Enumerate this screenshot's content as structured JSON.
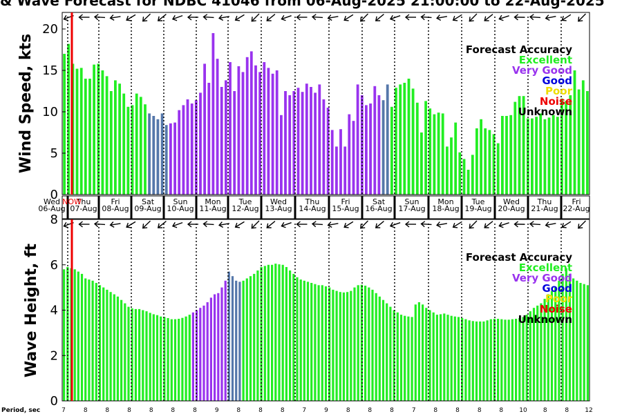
{
  "title": "& Wave Forecast for NDBC 41046 from 06-Aug-2025 21:00:00 to 22-Aug-2025",
  "legend": {
    "title": "Forecast Accuracy",
    "items": [
      {
        "label": "Excellent",
        "color": "#22ee22"
      },
      {
        "label": "Very Good",
        "color": "#9933ee"
      },
      {
        "label": "Good",
        "color": "#0000dd"
      },
      {
        "label": "Poor",
        "color": "#eedd00"
      },
      {
        "label": "Noise",
        "color": "#ee0000"
      },
      {
        "label": "Unknown",
        "color": "#000000"
      }
    ]
  },
  "day_labels": [
    {
      "day": "Wed",
      "date": "06-Aug"
    },
    {
      "day": "Thu",
      "date": "07-Aug"
    },
    {
      "day": "Fri",
      "date": "08-Aug"
    },
    {
      "day": "Sat",
      "date": "09-Aug"
    },
    {
      "day": "Sun",
      "date": "10-Aug"
    },
    {
      "day": "Mon",
      "date": "11-Aug"
    },
    {
      "day": "Tue",
      "date": "12-Aug"
    },
    {
      "day": "Wed",
      "date": "13-Aug"
    },
    {
      "day": "Thu",
      "date": "14-Aug"
    },
    {
      "day": "Fri",
      "date": "15-Aug"
    },
    {
      "day": "Sat",
      "date": "16-Aug"
    },
    {
      "day": "Sun",
      "date": "17-Aug"
    },
    {
      "day": "Mon",
      "date": "18-Aug"
    },
    {
      "day": "Tue",
      "date": "19-Aug"
    },
    {
      "day": "Wed",
      "date": "20-Aug"
    },
    {
      "day": "Thu",
      "date": "21-Aug"
    },
    {
      "day": "Fri",
      "date": "22-Aug"
    }
  ],
  "now_label": "NOW",
  "period_label": "Period, sec",
  "period_values": [
    7,
    8,
    8,
    8,
    8,
    8,
    8,
    9,
    8,
    8,
    8,
    7,
    9,
    8,
    8,
    8,
    7,
    8,
    8,
    8,
    8,
    10,
    8,
    8,
    12
  ],
  "chart_data": [
    {
      "type": "bar",
      "ylabel": "Wind Speed, kts",
      "ylim": [
        0,
        22
      ],
      "yticks": [
        0,
        5,
        10,
        15,
        20
      ],
      "values": [
        17,
        18.2,
        15.8,
        15.2,
        15.3,
        14,
        14,
        15.7,
        15.8,
        15,
        14.3,
        12.5,
        13.8,
        13.4,
        12.2,
        10.6,
        10.8,
        12.2,
        11.8,
        10.9,
        9.8,
        9.5,
        9.1,
        9.8,
        8.4,
        8.6,
        8.7,
        10.2,
        10.8,
        11.5,
        11,
        11.4,
        12.3,
        15.8,
        13.5,
        19.5,
        16.4,
        13,
        13.8,
        16,
        12.5,
        15.5,
        14.8,
        16.6,
        17.3,
        15.6,
        14.8,
        16,
        15.3,
        14.6,
        15,
        9.6,
        12.5,
        12,
        12.5,
        12.9,
        12.4,
        13.4,
        13,
        12.3,
        13.3,
        11.5,
        10.5,
        7.8,
        5.8,
        7.9,
        5.8,
        9.7,
        8.9,
        13.3,
        12,
        10.8,
        11,
        13.1,
        12,
        11.4,
        13.3,
        10.6,
        12.9,
        13.3,
        13.5,
        14,
        12.8,
        11.1,
        7.5,
        11.3,
        10.4,
        9.7,
        9.9,
        9.8,
        5.8,
        6.9,
        8.7,
        5.1,
        4.3,
        3,
        4.8,
        8,
        9.1,
        8,
        7.8,
        7.3,
        6.2,
        9.5,
        9.5,
        9.6,
        11.2,
        11.9,
        11.9,
        9.2,
        9.2,
        9.4,
        9.8,
        9.1,
        9.3,
        9.6,
        9.4,
        11.6,
        11.3,
        12,
        15,
        12.7,
        13.8,
        12.5
      ],
      "tiers": [
        0,
        0,
        0,
        0,
        0,
        0,
        0,
        0,
        0,
        0,
        0,
        0,
        0,
        0,
        0,
        0,
        0,
        0,
        0,
        0,
        2,
        2,
        2,
        2,
        2,
        1,
        1,
        1,
        1,
        1,
        1,
        1,
        1,
        1,
        1,
        1,
        1,
        1,
        1,
        1,
        1,
        1,
        1,
        1,
        1,
        1,
        1,
        1,
        1,
        1,
        1,
        1,
        1,
        1,
        1,
        1,
        1,
        1,
        1,
        1,
        1,
        1,
        1,
        1,
        1,
        1,
        1,
        1,
        1,
        1,
        1,
        1,
        1,
        1,
        1,
        2,
        2,
        0,
        0,
        0,
        0,
        0,
        0,
        0,
        0,
        0,
        0,
        0,
        0,
        0,
        0,
        0,
        0,
        0,
        0,
        0,
        0,
        0,
        0,
        0,
        0,
        0,
        0,
        0,
        0,
        0,
        0,
        0,
        0,
        0,
        0,
        0,
        0,
        0,
        0,
        0,
        0,
        0,
        0,
        0,
        0,
        0,
        0,
        0
      ]
    },
    {
      "type": "bar",
      "ylabel": "Wave Height, ft",
      "ylim": [
        0,
        8
      ],
      "yticks": [
        0,
        2,
        4,
        6,
        8
      ],
      "values": [
        5.8,
        5.9,
        5.85,
        5.8,
        5.7,
        5.6,
        5.4,
        5.35,
        5.3,
        5.2,
        5.1,
        5.0,
        4.9,
        4.8,
        4.7,
        4.6,
        4.45,
        4.3,
        4.15,
        4.08,
        4.05,
        4.05,
        4.0,
        3.95,
        3.88,
        3.82,
        3.78,
        3.72,
        3.7,
        3.65,
        3.6,
        3.6,
        3.62,
        3.66,
        3.72,
        3.8,
        3.9,
        4.0,
        4.1,
        4.2,
        4.35,
        4.55,
        4.7,
        4.75,
        5.0,
        5.3,
        5.7,
        5.5,
        5.3,
        5.25,
        5.3,
        5.4,
        5.5,
        5.6,
        5.75,
        5.9,
        5.95,
        6.0,
        6.0,
        6.05,
        6.02,
        6.0,
        5.9,
        5.75,
        5.6,
        5.45,
        5.35,
        5.3,
        5.25,
        5.2,
        5.15,
        5.1,
        5.1,
        5.05,
        5.0,
        4.9,
        4.85,
        4.8,
        4.78,
        4.8,
        4.85,
        5.0,
        5.1,
        5.12,
        5.08,
        5.0,
        4.9,
        4.75,
        4.6,
        4.45,
        4.3,
        4.15,
        4.0,
        3.9,
        3.8,
        3.75,
        3.72,
        3.7,
        4.25,
        4.35,
        4.25,
        4.1,
        4.0,
        3.9,
        3.8,
        3.82,
        3.85,
        3.8,
        3.75,
        3.72,
        3.7,
        3.65,
        3.6,
        3.55,
        3.52,
        3.5,
        3.5,
        3.5,
        3.55,
        3.6,
        3.62,
        3.62,
        3.6,
        3.58,
        3.58,
        3.6,
        3.62,
        3.65,
        3.7,
        3.8,
        3.95,
        4.1,
        4.2,
        4.3,
        4.5,
        4.7,
        4.85,
        5.0,
        5.3,
        5.6,
        5.85,
        5.6,
        5.4,
        5.3,
        5.2,
        5.15,
        5.1
      ],
      "tiers": [
        0,
        0,
        0,
        0,
        0,
        0,
        0,
        0,
        0,
        0,
        0,
        0,
        0,
        0,
        0,
        0,
        0,
        0,
        0,
        0,
        0,
        0,
        0,
        0,
        0,
        0,
        0,
        0,
        0,
        0,
        0,
        0,
        0,
        0,
        0,
        0,
        1,
        1,
        1,
        1,
        1,
        1,
        1,
        1,
        1,
        1,
        2,
        2,
        2,
        2,
        0,
        0,
        0,
        0,
        0,
        0,
        0,
        0,
        0,
        0,
        0,
        0,
        0,
        0,
        0,
        0,
        0,
        0,
        0,
        0,
        0,
        0,
        0,
        0,
        0,
        0,
        0,
        0,
        0,
        0,
        0,
        0,
        0,
        0,
        0,
        0,
        0,
        0,
        0,
        0,
        0,
        0,
        0,
        0,
        0,
        0,
        0,
        0,
        0,
        0,
        0,
        0,
        0,
        0,
        0,
        0,
        0,
        0,
        0,
        0,
        0,
        0,
        0,
        0,
        0,
        0,
        0,
        0,
        0,
        0,
        0,
        0,
        0,
        0,
        0,
        0,
        0,
        0,
        0,
        0,
        0,
        0,
        0,
        0,
        0,
        0,
        0,
        0,
        0,
        0,
        0,
        0,
        0,
        0,
        0,
        0,
        0,
        0,
        0,
        0,
        0,
        0
      ]
    }
  ]
}
